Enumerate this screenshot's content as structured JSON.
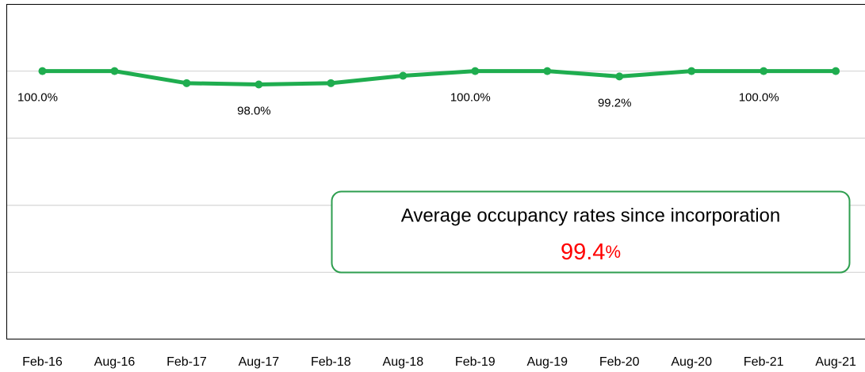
{
  "chart_data": {
    "type": "line",
    "categories": [
      "Feb-16",
      "Aug-16",
      "Feb-17",
      "Aug-17",
      "Feb-18",
      "Aug-18",
      "Feb-19",
      "Aug-19",
      "Feb-20",
      "Aug-20",
      "Feb-21",
      "Aug-21"
    ],
    "series": [
      {
        "color": "#1fad4f",
        "values": [
          100,
          100,
          98.2,
          98.0,
          98.2,
          99.3,
          100,
          100,
          99.2,
          100,
          100,
          100
        ],
        "value_labels": [
          "100.0%",
          null,
          null,
          "98.0%",
          null,
          null,
          "100.0%",
          null,
          "99.2%",
          null,
          "100.0%",
          null
        ]
      }
    ],
    "ylim": [
      60,
      110
    ],
    "yticks": [
      70,
      80,
      90,
      100
    ],
    "grid": true,
    "y_tick_labels": false,
    "annotation": {
      "text": "Average occupancy rates since incorporation",
      "value": "99.4",
      "unit": "%",
      "value_color": "#ff0000",
      "border_color": "#2e9e4f"
    }
  }
}
